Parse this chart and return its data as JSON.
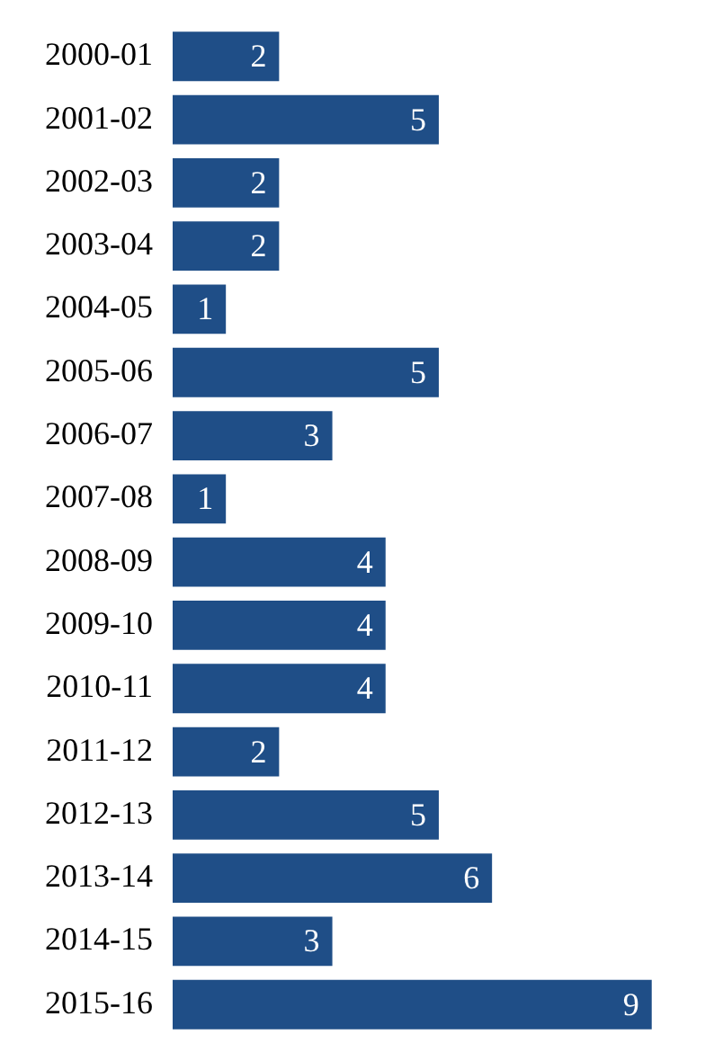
{
  "chart_data": {
    "type": "bar",
    "orientation": "horizontal",
    "categories": [
      "2000-01",
      "2001-02",
      "2002-03",
      "2003-04",
      "2004-05",
      "2005-06",
      "2006-07",
      "2007-08",
      "2008-09",
      "2009-10",
      "2010-11",
      "2011-12",
      "2012-13",
      "2013-14",
      "2014-15",
      "2015-16"
    ],
    "values": [
      2,
      5,
      2,
      2,
      1,
      5,
      3,
      1,
      4,
      4,
      4,
      2,
      5,
      6,
      3,
      9
    ],
    "color": "#1f4e87",
    "data_labels": true,
    "legend": false,
    "tick_labels": "y"
  }
}
